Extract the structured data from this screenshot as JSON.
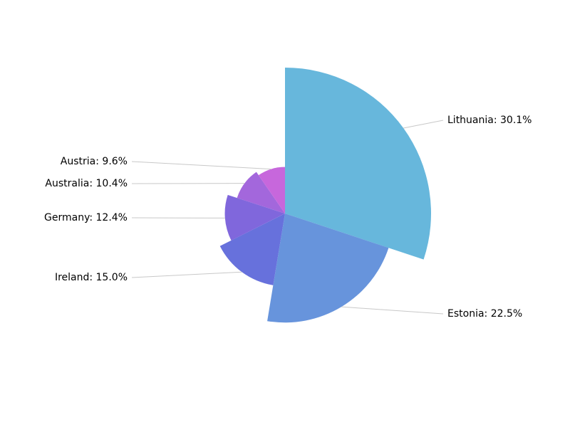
{
  "chart_data": {
    "type": "pie",
    "values": [
      30.1,
      22.5,
      15.0,
      12.4,
      10.4,
      9.6
    ],
    "value_labels": [
      "Lithuania: 30.1%",
      "Estonia: 22.5%",
      "Ireland: 15.0%",
      "Germany: 12.4%",
      "Australia: 10.4%",
      "Austria: 9.6%"
    ],
    "colors": [
      "#67b7dc",
      "#6794dc",
      "#6771dc",
      "#8067dc",
      "#a367dc",
      "#c767dc"
    ],
    "radius_by_value": true
  }
}
